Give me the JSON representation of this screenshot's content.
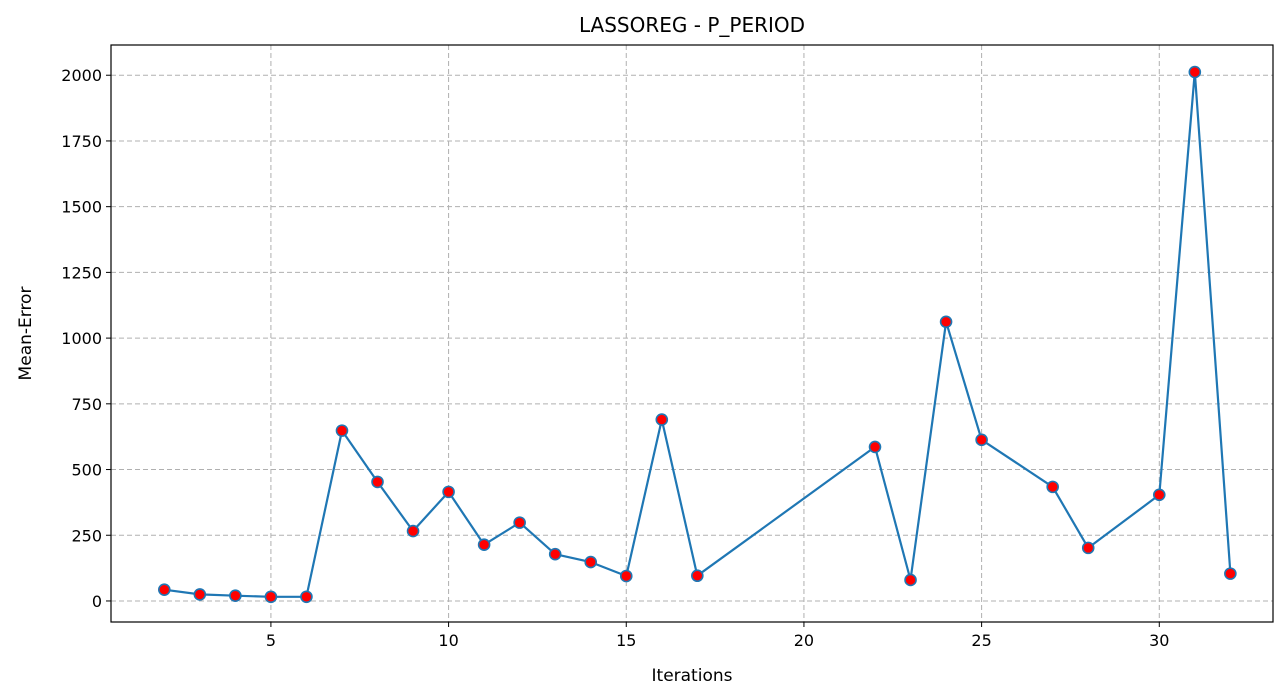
{
  "chart_data": {
    "type": "line",
    "title": "LASSOREG - P_PERIOD",
    "xlabel": "Iterations",
    "ylabel": "Mean-Error",
    "xlim": [
      0.5,
      33.2
    ],
    "ylim": [
      -80,
      2115
    ],
    "xticks": [
      5,
      10,
      15,
      20,
      25,
      30
    ],
    "yticks": [
      0,
      250,
      500,
      750,
      1000,
      1250,
      1500,
      1750,
      2000
    ],
    "grid": true,
    "line_color": "#1f77b4",
    "marker_face_color": "#ff0000",
    "marker_edge_color": "#1f77b4",
    "x": [
      2,
      3,
      4,
      5,
      6,
      7,
      8,
      9,
      10,
      11,
      12,
      13,
      14,
      15,
      16,
      17,
      22,
      23,
      24,
      25,
      27,
      28,
      30,
      31,
      32
    ],
    "y": [
      43,
      25,
      20,
      16,
      16,
      648,
      453,
      266,
      415,
      214,
      298,
      178,
      148,
      95,
      690,
      96,
      586,
      80,
      1062,
      613,
      434,
      202,
      404,
      2012,
      104
    ]
  }
}
